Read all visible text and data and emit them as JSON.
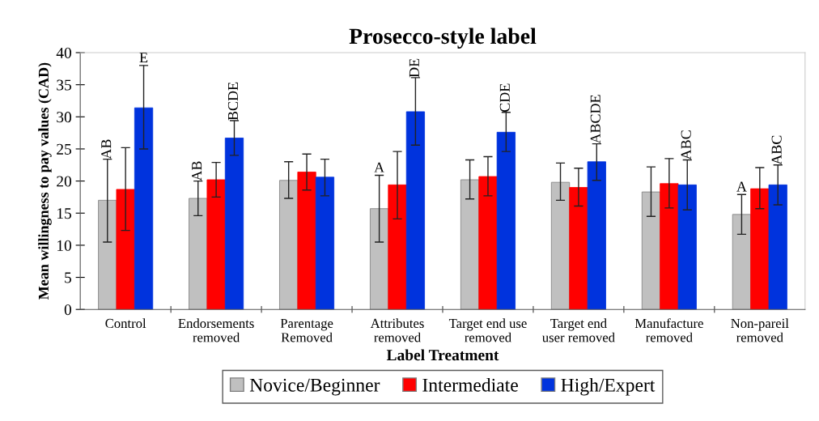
{
  "chart_data": {
    "type": "bar",
    "title": "Prosecco-style label",
    "xlabel": "Label Treatment",
    "ylabel": "Mean willingness to pay values (CAD)",
    "categories": [
      "Control",
      "Endorsements\nremoved",
      "Parentage\nRemoved",
      "Attributes\nremoved",
      "Target end use\nremoved",
      "Target end\nuser removed",
      "Manufacture\nremoved",
      "Non-pareil\nremoved"
    ],
    "series": [
      {
        "name": "Novice/Beginner",
        "color": "#c0c0c0",
        "values": [
          17.0,
          17.3,
          20.1,
          15.7,
          20.2,
          19.8,
          18.3,
          14.8
        ],
        "value_labels": [
          "AB",
          "AB",
          null,
          "A",
          null,
          null,
          null,
          "A"
        ],
        "errors": [
          [
            10.5,
            23.4
          ],
          [
            14.6,
            20.0
          ],
          [
            17.3,
            23.0
          ],
          [
            10.5,
            20.9
          ],
          [
            17.2,
            23.3
          ],
          [
            17.0,
            22.8
          ],
          [
            14.5,
            22.2
          ],
          [
            11.7,
            17.9
          ]
        ]
      },
      {
        "name": "Intermediate",
        "color": "#ff0000",
        "values": [
          18.7,
          20.2,
          21.4,
          19.4,
          20.7,
          19.0,
          19.6,
          18.8
        ],
        "errors": [
          [
            12.3,
            25.2
          ],
          [
            17.5,
            22.9
          ],
          [
            18.6,
            24.2
          ],
          [
            14.1,
            24.6
          ],
          [
            17.7,
            23.8
          ],
          [
            16.1,
            22.0
          ],
          [
            15.8,
            23.5
          ],
          [
            15.7,
            22.1
          ]
        ]
      },
      {
        "name": "High/Expert",
        "color": "#0033dd",
        "values": [
          31.4,
          26.7,
          20.6,
          30.8,
          27.6,
          23.0,
          19.4,
          19.4
        ],
        "value_labels": [
          "E",
          "BCDE",
          null,
          "DE",
          "CDE",
          "ABCDE",
          "ABC",
          "ABC"
        ],
        "errors": [
          [
            25.0,
            38.0
          ],
          [
            24.0,
            29.4
          ],
          [
            17.7,
            23.4
          ],
          [
            25.6,
            36.1
          ],
          [
            24.6,
            30.7
          ],
          [
            20.1,
            25.8
          ],
          [
            15.5,
            23.3
          ],
          [
            16.3,
            22.5
          ]
        ]
      }
    ],
    "ylim": [
      0,
      40
    ],
    "yticks": [
      0,
      5,
      10,
      15,
      20,
      25,
      30,
      35,
      40
    ],
    "grid": false,
    "legend": "bottom"
  }
}
